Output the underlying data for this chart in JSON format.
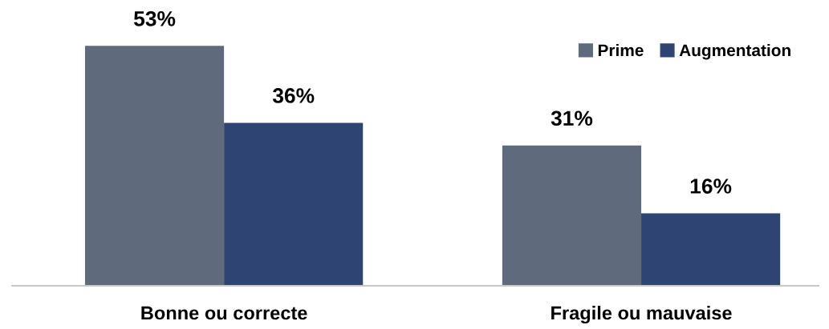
{
  "chart_data": {
    "type": "bar",
    "categories": [
      "Bonne ou correcte",
      "Fragile ou mauvaise"
    ],
    "series": [
      {
        "name": "Prime",
        "color": "#5f6b7c",
        "values": [
          53,
          31
        ],
        "value_labels": [
          "53%",
          "31%"
        ]
      },
      {
        "name": "Augmentation",
        "color": "#2e4473",
        "values": [
          36,
          16
        ],
        "value_labels": [
          "36%",
          "16%"
        ]
      }
    ],
    "legend": "top right",
    "grid": false
  }
}
